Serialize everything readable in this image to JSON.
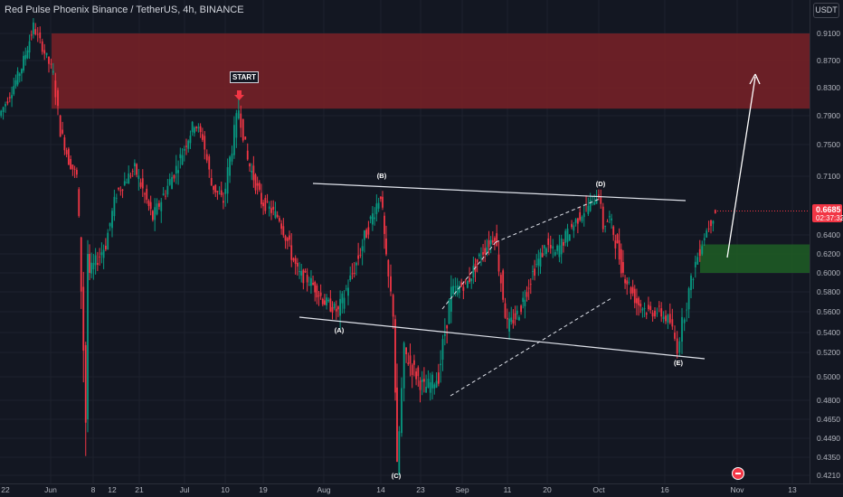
{
  "header": {
    "title": "Red Pulse Phoenix Binance / TetherUS, 4h, BINANCE",
    "currency_button": "USDT"
  },
  "price_axis": {
    "labels": [
      "0.9100",
      "0.8700",
      "0.8300",
      "0.7900",
      "0.7500",
      "0.7100",
      "0.6400",
      "0.6200",
      "0.6000",
      "0.5800",
      "0.5600",
      "0.5400",
      "0.5200",
      "0.5000",
      "0.4800",
      "0.4650",
      "0.4490",
      "0.4350",
      "0.4210"
    ],
    "last_price": "0.6685",
    "countdown": "02:37:32"
  },
  "time_axis": {
    "labels": [
      "22",
      "Jun",
      "8",
      "12",
      "21",
      "Jul",
      "10",
      "19",
      "Aug",
      "14",
      "23",
      "Sep",
      "11",
      "20",
      "Oct",
      "16",
      "Nov",
      "13"
    ]
  },
  "annotations": {
    "start_label": "START",
    "wave_labels": [
      "(A)",
      "(B)",
      "(C)",
      "(D)",
      "(E)"
    ]
  },
  "colors": {
    "background": "#131722",
    "up_candle": "#089981",
    "down_candle": "#f23645",
    "resistance_zone": "#7a2127",
    "target_zone": "#1e5a25",
    "last_price_tag": "#f23645"
  },
  "chart_data": {
    "type": "candlestick",
    "symbol": "Red Pulse Phoenix Binance / TetherUS",
    "interval": "4h",
    "exchange": "BINANCE",
    "ylim": [
      0.42,
      0.92
    ],
    "path": [
      [
        "22",
        0.79
      ],
      [
        "22+",
        0.82
      ],
      [
        "late May",
        0.86
      ],
      [
        "late May+",
        0.92
      ],
      [
        "Jun",
        0.89
      ],
      [
        "Jun+",
        0.85
      ],
      [
        "early Jun",
        0.77
      ],
      [
        "8",
        0.73
      ],
      [
        "8+",
        0.71
      ],
      [
        "8 low",
        0.465
      ],
      [
        "9",
        0.62
      ],
      [
        "12",
        0.6
      ],
      [
        "12+",
        0.63
      ],
      [
        "16",
        0.69
      ],
      [
        "21",
        0.72
      ],
      [
        "21+",
        0.66
      ],
      [
        "Jul",
        0.72
      ],
      [
        "Jul+",
        0.78
      ],
      [
        "5",
        0.76
      ],
      [
        "8",
        0.7
      ],
      [
        "10",
        0.68
      ],
      [
        "13",
        0.8
      ],
      [
        "15",
        0.73
      ],
      [
        "19",
        0.68
      ],
      [
        "25",
        0.66
      ],
      [
        "Aug",
        0.6
      ],
      [
        "5",
        0.59
      ],
      [
        "8",
        0.57
      ],
      [
        "9",
        0.56
      ],
      [
        "12",
        0.61
      ],
      [
        "14",
        0.69
      ],
      [
        "15",
        0.61
      ],
      [
        "17",
        0.56
      ],
      [
        "17 low",
        0.421
      ],
      [
        "18",
        0.52
      ],
      [
        "22",
        0.49
      ],
      [
        "25",
        0.5
      ],
      [
        "28",
        0.58
      ],
      [
        "Sep",
        0.59
      ],
      [
        "5",
        0.62
      ],
      [
        "9",
        0.64
      ],
      [
        "11",
        0.545
      ],
      [
        "14",
        0.56
      ],
      [
        "17",
        0.6
      ],
      [
        "20",
        0.63
      ],
      [
        "24",
        0.62
      ],
      [
        "27",
        0.66
      ],
      [
        "Oct",
        0.69
      ],
      [
        "3",
        0.65
      ],
      [
        "5",
        0.66
      ],
      [
        "8",
        0.6
      ],
      [
        "10",
        0.57
      ],
      [
        "12",
        0.56
      ],
      [
        "14",
        0.56
      ],
      [
        "16",
        0.55
      ],
      [
        "17",
        0.525
      ],
      [
        "19",
        0.56
      ],
      [
        "21",
        0.61
      ],
      [
        "23",
        0.64
      ],
      [
        "24",
        0.6685
      ]
    ],
    "resistance_zone": [
      0.8,
      0.91
    ],
    "target_zone": [
      0.6,
      0.63
    ],
    "target": 0.85,
    "last_price": 0.6685,
    "wave_points": {
      "A": [
        "8",
        0.56
      ],
      "B": [
        "14",
        0.69
      ],
      "C": [
        "17",
        0.421
      ],
      "D": [
        "Oct",
        0.69
      ],
      "E": [
        "17",
        0.525
      ]
    }
  }
}
